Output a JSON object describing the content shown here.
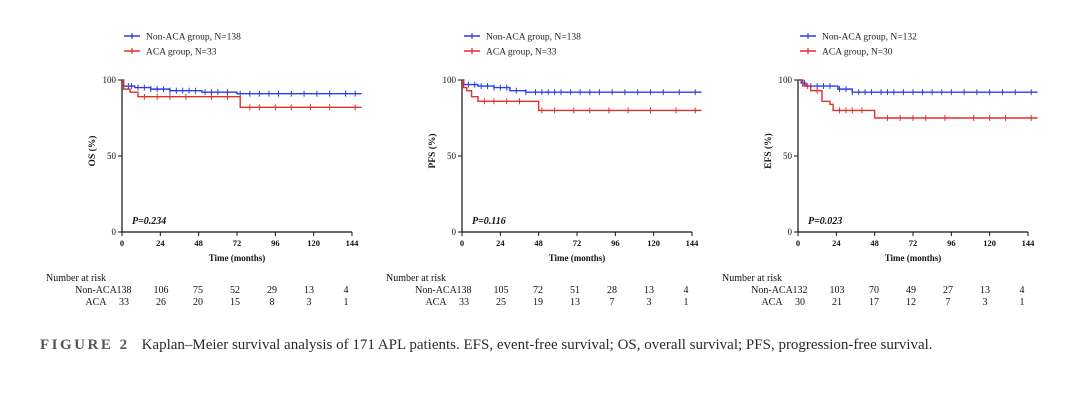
{
  "figure": {
    "label": "FIGURE 2",
    "caption": "Kaplan–Meier survival analysis of 171 APL patients. EFS, event-free survival; OS, overall survival; PFS, progression-free survival."
  },
  "colors": {
    "non_aca": "#2b3ee0",
    "aca": "#e0302b",
    "axis": "#111111"
  },
  "chart_data": [
    {
      "type": "line",
      "ylabel": "OS (%)",
      "xlabel": "Time (months)",
      "xlim": [
        0,
        144
      ],
      "ylim": [
        0,
        100
      ],
      "xticks": [
        0,
        24,
        48,
        72,
        96,
        120,
        144
      ],
      "yticks": [
        0,
        50,
        100
      ],
      "p_value": "P=0.234",
      "legend": [
        "Non-ACA group, N=138",
        "ACA group, N=33"
      ],
      "series": [
        {
          "name": "Non-ACA group, N=138",
          "key": "non_aca",
          "steps": [
            [
              0,
              100
            ],
            [
              1,
              96
            ],
            [
              8,
              95
            ],
            [
              18,
              94
            ],
            [
              30,
              93
            ],
            [
              50,
              92
            ],
            [
              72,
              91
            ],
            [
              150,
              91
            ]
          ],
          "censors": [
            4,
            6,
            10,
            14,
            18,
            22,
            26,
            30,
            34,
            38,
            42,
            46,
            52,
            56,
            60,
            66,
            74,
            80,
            86,
            92,
            98,
            106,
            114,
            122,
            130,
            140,
            146
          ]
        },
        {
          "name": "ACA group, N=33",
          "key": "aca",
          "steps": [
            [
              0,
              100
            ],
            [
              1,
              94
            ],
            [
              5,
              92
            ],
            [
              10,
              89
            ],
            [
              72,
              89
            ],
            [
              74,
              82
            ],
            [
              150,
              82
            ]
          ],
          "censors": [
            14,
            22,
            30,
            40,
            56,
            66,
            80,
            86,
            96,
            106,
            118,
            130,
            146
          ]
        }
      ],
      "risk_table": {
        "title": "Number at risk",
        "rows": [
          {
            "label": "Non-ACA",
            "values": [
              "138",
              "106",
              "75",
              "52",
              "29",
              "13",
              "4"
            ]
          },
          {
            "label": "ACA",
            "values": [
              "33",
              "26",
              "20",
              "15",
              "8",
              "3",
              "1"
            ]
          }
        ]
      }
    },
    {
      "type": "line",
      "ylabel": "PFS (%)",
      "xlabel": "Time (months)",
      "xlim": [
        0,
        144
      ],
      "ylim": [
        0,
        100
      ],
      "xticks": [
        0,
        24,
        48,
        72,
        96,
        120,
        144
      ],
      "yticks": [
        0,
        50,
        100
      ],
      "p_value": "P=0.116",
      "legend": [
        "Non-ACA group, N=138",
        "ACA group, N=33"
      ],
      "series": [
        {
          "name": "Non-ACA group, N=138",
          "key": "non_aca",
          "steps": [
            [
              0,
              100
            ],
            [
              1,
              97
            ],
            [
              10,
              96
            ],
            [
              20,
              95
            ],
            [
              30,
              93
            ],
            [
              40,
              92
            ],
            [
              150,
              92
            ]
          ],
          "censors": [
            4,
            8,
            12,
            16,
            20,
            24,
            28,
            34,
            40,
            46,
            50,
            54,
            58,
            62,
            68,
            74,
            80,
            86,
            94,
            102,
            110,
            118,
            126,
            136,
            146
          ]
        },
        {
          "name": "ACA group, N=33",
          "key": "aca",
          "steps": [
            [
              0,
              100
            ],
            [
              1,
              95
            ],
            [
              3,
              93
            ],
            [
              6,
              89
            ],
            [
              10,
              86
            ],
            [
              46,
              86
            ],
            [
              48,
              80
            ],
            [
              150,
              80
            ]
          ],
          "censors": [
            14,
            20,
            28,
            36,
            50,
            58,
            70,
            80,
            92,
            104,
            118,
            134,
            146
          ]
        }
      ],
      "risk_table": {
        "title": "Number at risk",
        "rows": [
          {
            "label": "Non-ACA",
            "values": [
              "138",
              "105",
              "72",
              "51",
              "28",
              "13",
              "4"
            ]
          },
          {
            "label": "ACA",
            "values": [
              "33",
              "25",
              "19",
              "13",
              "7",
              "3",
              "1"
            ]
          }
        ]
      }
    },
    {
      "type": "line",
      "ylabel": "EFS (%)",
      "xlabel": "Time (months)",
      "xlim": [
        0,
        144
      ],
      "ylim": [
        0,
        100
      ],
      "xticks": [
        0,
        24,
        48,
        72,
        96,
        120,
        144
      ],
      "yticks": [
        0,
        50,
        100
      ],
      "p_value": "P=0.023",
      "legend": [
        "Non-ACA group, N=132",
        "ACA group, N=30"
      ],
      "series": [
        {
          "name": "Non-ACA group, N=132",
          "key": "non_aca",
          "steps": [
            [
              0,
              100
            ],
            [
              2,
              98
            ],
            [
              5,
              96
            ],
            [
              25,
              94
            ],
            [
              34,
              92
            ],
            [
              150,
              92
            ]
          ],
          "censors": [
            4,
            8,
            12,
            16,
            20,
            26,
            30,
            34,
            38,
            42,
            46,
            52,
            56,
            60,
            66,
            72,
            78,
            84,
            90,
            96,
            104,
            112,
            120,
            128,
            136,
            146
          ]
        },
        {
          "name": "ACA group, N=30",
          "key": "aca",
          "steps": [
            [
              0,
              100
            ],
            [
              3,
              96
            ],
            [
              8,
              93
            ],
            [
              15,
              86
            ],
            [
              20,
              84
            ],
            [
              22,
              80
            ],
            [
              46,
              80
            ],
            [
              48,
              75
            ],
            [
              150,
              75
            ]
          ],
          "censors": [
            6,
            12,
            26,
            30,
            34,
            40,
            56,
            64,
            72,
            80,
            92,
            110,
            120,
            130,
            146
          ]
        }
      ],
      "risk_table": {
        "title": "Number at risk",
        "rows": [
          {
            "label": "Non-ACA",
            "values": [
              "132",
              "103",
              "70",
              "49",
              "27",
              "13",
              "4"
            ]
          },
          {
            "label": "ACA",
            "values": [
              "30",
              "21",
              "17",
              "12",
              "7",
              "3",
              "1"
            ]
          }
        ]
      }
    }
  ]
}
